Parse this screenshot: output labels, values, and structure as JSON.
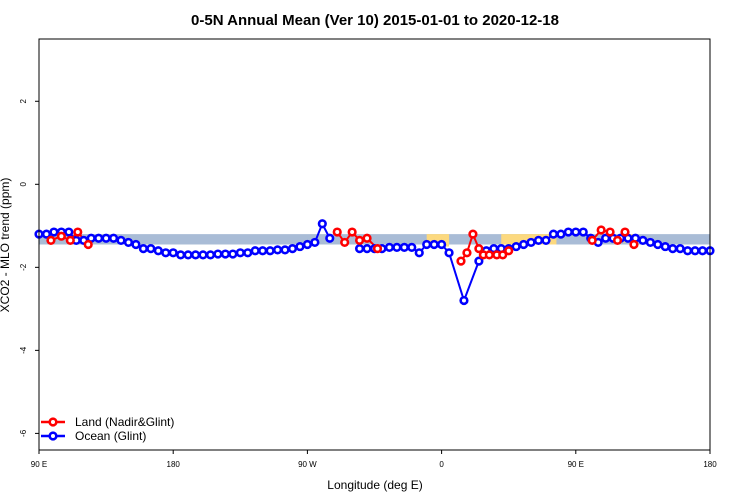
{
  "chart_data": {
    "type": "scatter",
    "title": "0-5N Annual Mean (Ver 10)   2015-01-01 to 2020-12-18",
    "xlabel": "Longitude (deg E)",
    "ylabel": "XCO2 - MLO trend (ppm)",
    "x_ticks": [
      {
        "value": 90,
        "label": "90 E"
      },
      {
        "value": 180,
        "label": "180"
      },
      {
        "value": 270,
        "label": "90 W"
      },
      {
        "value": 360,
        "label": "0"
      },
      {
        "value": 450,
        "label": "90 E"
      },
      {
        "value": 540,
        "label": "180"
      }
    ],
    "y_ticks": [
      {
        "value": 2,
        "label": "2"
      },
      {
        "value": 0,
        "label": "0"
      },
      {
        "value": -2,
        "label": "-2"
      },
      {
        "value": -4,
        "label": "-4"
      },
      {
        "value": -6,
        "label": "-6"
      }
    ],
    "xlim": [
      90,
      540
    ],
    "ylim": [
      -6.4,
      3.5
    ],
    "grid": false,
    "legend_position": "bottom-left",
    "bands": [
      {
        "name": "ocean-band",
        "x0": 90,
        "x1": 540,
        "y0": -1.45,
        "y1": -1.2,
        "color": "#a9bcd6"
      },
      {
        "name": "land-band-1",
        "x0": 100,
        "x1": 125,
        "y0": -1.45,
        "y1": -1.2,
        "color": "#a9bcd6"
      },
      {
        "name": "land-band-2",
        "x0": 350,
        "x1": 365,
        "y0": -1.5,
        "y1": -1.2,
        "color": "#fcd97f"
      },
      {
        "name": "land-band-3",
        "x0": 400,
        "x1": 437,
        "y0": -1.45,
        "y1": -1.2,
        "color": "#fcd97f"
      },
      {
        "name": "land-band-4",
        "x0": 480,
        "x1": 488,
        "y0": -1.4,
        "y1": -1.2,
        "color": "#fcd97f"
      }
    ],
    "series": [
      {
        "name": "Ocean (Glint)",
        "color": "#0000ff",
        "x": [
          90,
          95,
          100,
          105,
          110,
          115,
          120,
          125,
          130,
          135,
          140,
          145,
          150,
          155,
          160,
          165,
          170,
          175,
          180,
          185,
          190,
          195,
          200,
          205,
          210,
          215,
          220,
          225,
          230,
          235,
          240,
          245,
          250,
          255,
          260,
          265,
          270,
          275,
          280,
          285,
          305,
          310,
          315,
          320,
          325,
          330,
          335,
          340,
          345,
          350,
          355,
          360,
          365,
          375,
          385,
          390,
          395,
          400,
          405,
          410,
          415,
          420,
          425,
          430,
          435,
          440,
          445,
          450,
          455,
          460,
          465,
          470,
          475,
          480,
          485,
          490,
          495,
          500,
          505,
          510,
          515,
          520,
          525,
          530,
          535,
          540
        ],
        "y": [
          -1.2,
          -1.2,
          -1.15,
          -1.15,
          -1.15,
          -1.35,
          -1.35,
          -1.3,
          -1.3,
          -1.3,
          -1.3,
          -1.35,
          -1.4,
          -1.45,
          -1.55,
          -1.55,
          -1.6,
          -1.65,
          -1.65,
          -1.7,
          -1.7,
          -1.7,
          -1.7,
          -1.7,
          -1.68,
          -1.68,
          -1.68,
          -1.65,
          -1.65,
          -1.6,
          -1.6,
          -1.6,
          -1.58,
          -1.58,
          -1.55,
          -1.5,
          -1.45,
          -1.4,
          -0.95,
          -1.3,
          -1.55,
          -1.55,
          -1.55,
          -1.55,
          -1.52,
          -1.52,
          -1.52,
          -1.52,
          -1.65,
          -1.45,
          -1.45,
          -1.45,
          -1.65,
          -2.8,
          -1.85,
          -1.6,
          -1.55,
          -1.55,
          -1.55,
          -1.5,
          -1.45,
          -1.4,
          -1.35,
          -1.35,
          -1.2,
          -1.2,
          -1.15,
          -1.15,
          -1.15,
          -1.3,
          -1.4,
          -1.3,
          -1.3,
          -1.3,
          -1.3,
          -1.3,
          -1.35,
          -1.4,
          -1.45,
          -1.5,
          -1.55,
          -1.55,
          -1.6,
          -1.6,
          -1.6,
          -1.6
        ]
      },
      {
        "name": "Land (Nadir&Glint)",
        "color": "#ff0000",
        "x": [
          98,
          105,
          111,
          116,
          123,
          290,
          295,
          300,
          305,
          310,
          317,
          373,
          377,
          381,
          385,
          388,
          392,
          397,
          401,
          405,
          461,
          467,
          473,
          478,
          483,
          489
        ],
        "y": [
          -1.35,
          -1.25,
          -1.35,
          -1.15,
          -1.45,
          -1.15,
          -1.4,
          -1.15,
          -1.35,
          -1.3,
          -1.55,
          -1.85,
          -1.65,
          -1.2,
          -1.55,
          -1.7,
          -1.7,
          -1.7,
          -1.7,
          -1.6,
          -1.35,
          -1.1,
          -1.15,
          -1.35,
          -1.15,
          -1.45
        ]
      }
    ],
    "legend": [
      {
        "label": "Land (Nadir&Glint)",
        "color": "#ff0000"
      },
      {
        "label": "Ocean (Glint)",
        "color": "#0000ff"
      }
    ]
  }
}
